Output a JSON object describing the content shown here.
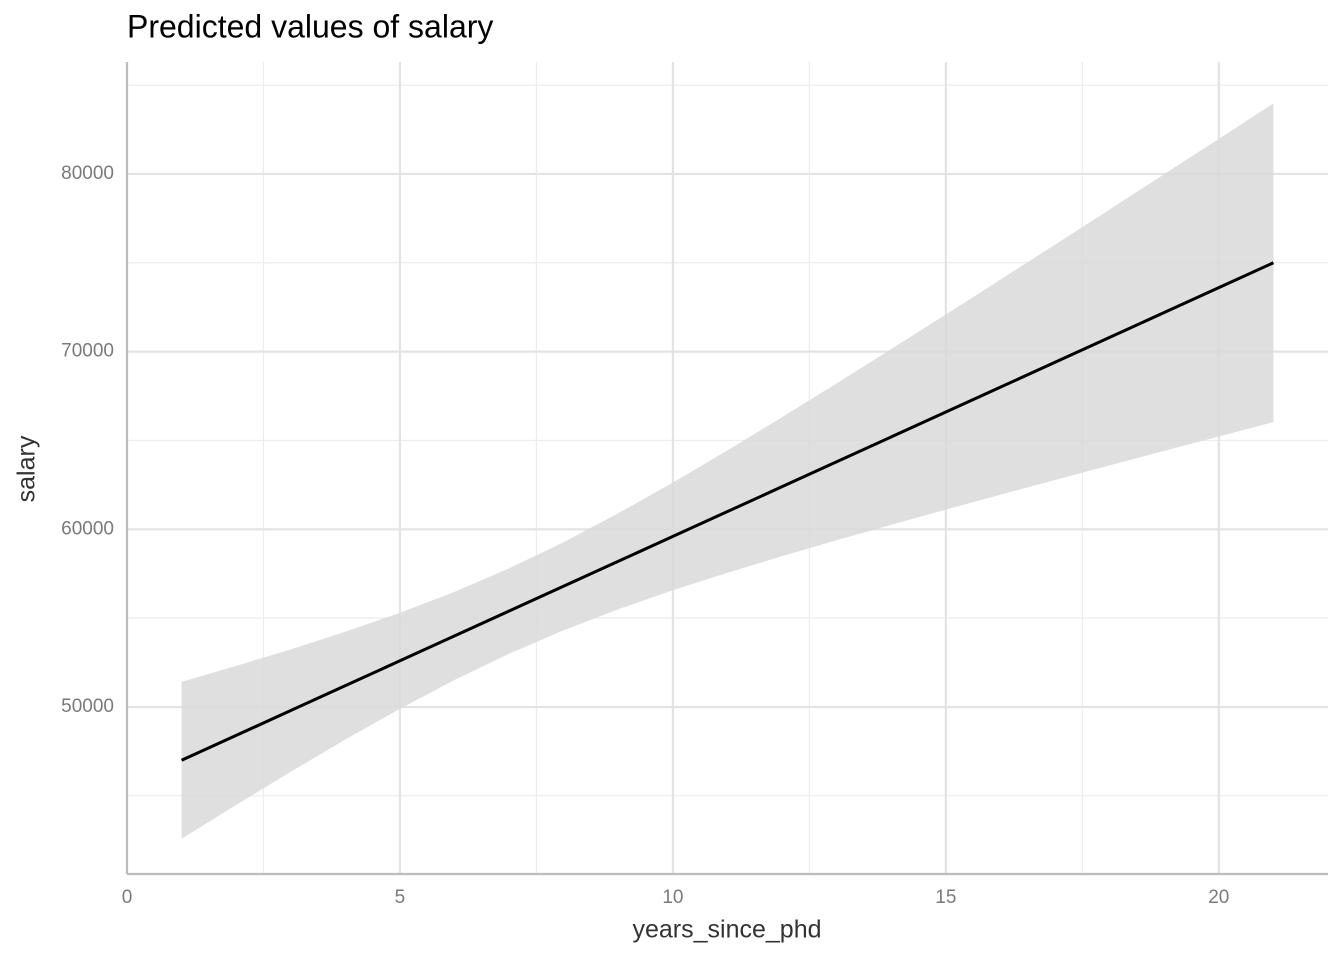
{
  "chart_data": {
    "type": "line",
    "title": "Predicted values of salary",
    "xlabel": "years_since_phd",
    "ylabel": "salary",
    "x": [
      1,
      2,
      3,
      4,
      5,
      6,
      7,
      8,
      9,
      10,
      11,
      12,
      13,
      14,
      15,
      16,
      17,
      18,
      19,
      20,
      21
    ],
    "series": [
      {
        "color": "#000000",
        "band_color": "#d9d9d9",
        "values": [
          47000,
          48400,
          49800,
          51200,
          52600,
          54000,
          55400,
          56800,
          58200,
          59600,
          61000,
          62400,
          63800,
          65200,
          66600,
          68000,
          69400,
          70800,
          72200,
          73600,
          75000
        ],
        "lower": [
          42585,
          44489,
          46355,
          48167,
          49899,
          51520,
          52998,
          54320,
          55499,
          56567,
          57555,
          58489,
          59385,
          60256,
          61109,
          61948,
          62777,
          63598,
          64413,
          65224,
          66031
        ],
        "upper": [
          51415,
          52311,
          53245,
          54233,
          55301,
          56480,
          57802,
          59280,
          60901,
          62633,
          64445,
          66311,
          68215,
          70144,
          72091,
          74052,
          76023,
          78002,
          79987,
          81976,
          83969
        ]
      }
    ],
    "xlim": [
      0,
      22
    ],
    "ylim": [
      40600,
      86300
    ],
    "xticks": [
      0,
      5,
      10,
      15,
      20
    ],
    "yticks": [
      50000,
      60000,
      70000,
      80000
    ],
    "grid": true,
    "minor_grid": true
  }
}
